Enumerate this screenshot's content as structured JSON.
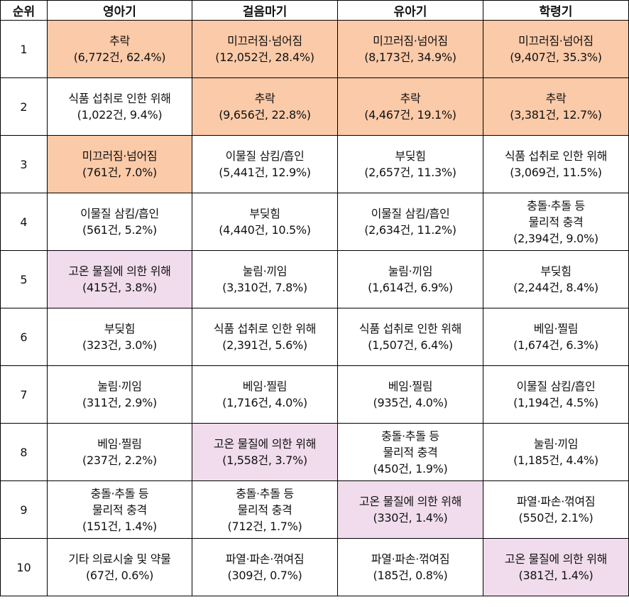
{
  "headers": [
    "순위",
    "영아기",
    "걸음마기",
    "유아기",
    "학령기"
  ],
  "colors": {
    "orange": "#fbcaa8",
    "pink": "#f0dcec"
  },
  "rows": [
    {
      "rank": "1",
      "cells": [
        {
          "lines": [
            "추락",
            "(6,772건,  62.4%)"
          ],
          "hl": "orange"
        },
        {
          "lines": [
            "미끄러짐·넘어짐",
            "(12,052건,  28.4%)"
          ],
          "hl": "orange"
        },
        {
          "lines": [
            "미끄러짐·넘어짐",
            "(8,173건,  34.9%)"
          ],
          "hl": "orange"
        },
        {
          "lines": [
            "미끄러짐·넘어짐",
            "(9,407건,  35.3%)"
          ],
          "hl": "orange"
        }
      ]
    },
    {
      "rank": "2",
      "cells": [
        {
          "lines": [
            "식품 섭취로 인한 위해",
            "(1,022건,  9.4%)"
          ],
          "hl": ""
        },
        {
          "lines": [
            "추락",
            "(9,656건,  22.8%)"
          ],
          "hl": "orange"
        },
        {
          "lines": [
            "추락",
            "(4,467건,  19.1%)"
          ],
          "hl": "orange"
        },
        {
          "lines": [
            "추락",
            "(3,381건,  12.7%)"
          ],
          "hl": "orange"
        }
      ]
    },
    {
      "rank": "3",
      "cells": [
        {
          "lines": [
            "미끄러짐·넘어짐",
            "(761건,  7.0%)"
          ],
          "hl": "orange"
        },
        {
          "lines": [
            "이물질  삼킴/흡인",
            "(5,441건,  12.9%)"
          ],
          "hl": ""
        },
        {
          "lines": [
            "부딪힘",
            "(2,657건,  11.3%)"
          ],
          "hl": ""
        },
        {
          "lines": [
            "식품 섭취로 인한 위해",
            "(3,069건,  11.5%)"
          ],
          "hl": ""
        }
      ]
    },
    {
      "rank": "4",
      "cells": [
        {
          "lines": [
            "이물질  삼킴/흡인",
            "(561건,  5.2%)"
          ],
          "hl": ""
        },
        {
          "lines": [
            "부딪힘",
            "(4,440건,  10.5%)"
          ],
          "hl": ""
        },
        {
          "lines": [
            "이물질  삼킴/흡인",
            "(2,634건,  11.2%)"
          ],
          "hl": ""
        },
        {
          "lines": [
            "충돌·추돌  등",
            "물리적  충격",
            "(2,394건,  9.0%)"
          ],
          "hl": ""
        }
      ]
    },
    {
      "rank": "5",
      "cells": [
        {
          "lines": [
            "고온 물질에 의한 위해",
            "(415건,  3.8%)"
          ],
          "hl": "pink"
        },
        {
          "lines": [
            "눌림·끼임",
            "(3,310건,  7.8%)"
          ],
          "hl": ""
        },
        {
          "lines": [
            "눌림·끼임",
            "(1,614건,  6.9%)"
          ],
          "hl": ""
        },
        {
          "lines": [
            "부딪힘",
            "(2,244건,  8.4%)"
          ],
          "hl": ""
        }
      ]
    },
    {
      "rank": "6",
      "cells": [
        {
          "lines": [
            "부딪힘",
            "(323건,  3.0%)"
          ],
          "hl": ""
        },
        {
          "lines": [
            "식품 섭취로 인한 위해",
            "(2,391건,  5.6%)"
          ],
          "hl": ""
        },
        {
          "lines": [
            "식품 섭취로 인한 위해",
            "(1,507건,  6.4%)"
          ],
          "hl": ""
        },
        {
          "lines": [
            "베임·찔림",
            "(1,674건,  6.3%)"
          ],
          "hl": ""
        }
      ]
    },
    {
      "rank": "7",
      "cells": [
        {
          "lines": [
            "눌림·끼임",
            "(311건,  2.9%)"
          ],
          "hl": ""
        },
        {
          "lines": [
            "베임·찔림",
            "(1,716건,  4.0%)"
          ],
          "hl": ""
        },
        {
          "lines": [
            "베임·찔림",
            "(935건,  4.0%)"
          ],
          "hl": ""
        },
        {
          "lines": [
            "이물질  삼킴/흡인",
            "(1,194건,  4.5%)"
          ],
          "hl": ""
        }
      ]
    },
    {
      "rank": "8",
      "cells": [
        {
          "lines": [
            "베임·찔림",
            "(237건,  2.2%)"
          ],
          "hl": ""
        },
        {
          "lines": [
            "고온 물질에 의한 위해",
            "(1,558건,  3.7%)"
          ],
          "hl": "pink"
        },
        {
          "lines": [
            "충돌·추돌  등",
            "물리적  충격",
            "(450건,  1.9%)"
          ],
          "hl": ""
        },
        {
          "lines": [
            "눌림·끼임",
            "(1,185건,  4.4%)"
          ],
          "hl": ""
        }
      ]
    },
    {
      "rank": "9",
      "cells": [
        {
          "lines": [
            "충돌·추돌  등",
            "물리적  충격",
            "(151건,  1.4%)"
          ],
          "hl": ""
        },
        {
          "lines": [
            "충돌·추돌  등",
            "물리적  충격",
            "(712건,  1.7%)"
          ],
          "hl": ""
        },
        {
          "lines": [
            "고온 물질에 의한 위해",
            "(330건, 1.4%)"
          ],
          "hl": "pink"
        },
        {
          "lines": [
            "파열·파손·꺾여짐",
            "(550건,  2.1%)"
          ],
          "hl": ""
        }
      ]
    },
    {
      "rank": "10",
      "cells": [
        {
          "lines": [
            "기타 의료시술 및 약물",
            "(67건,  0.6%)"
          ],
          "hl": ""
        },
        {
          "lines": [
            "파열·파손·꺾여짐",
            "(309건,  0.7%)"
          ],
          "hl": ""
        },
        {
          "lines": [
            "파열·파손·꺾여짐",
            "(185건,  0.8%)"
          ],
          "hl": ""
        },
        {
          "lines": [
            "고온 물질에 의한 위해",
            "(381건, 1.4%)"
          ],
          "hl": "pink"
        }
      ]
    }
  ]
}
